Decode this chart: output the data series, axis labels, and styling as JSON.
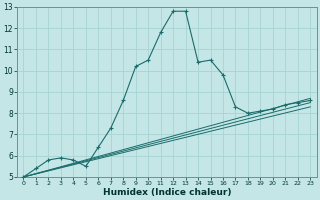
{
  "xlabel": "Humidex (Indice chaleur)",
  "ylabel": "",
  "background_color": "#c5e6e6",
  "grid_color": "#a8d4d4",
  "line_color": "#1a6b6b",
  "line_color2": "#2a8080",
  "xlim": [
    -0.5,
    23.5
  ],
  "ylim": [
    5,
    13
  ],
  "xticks": [
    0,
    1,
    2,
    3,
    4,
    5,
    6,
    7,
    8,
    9,
    10,
    11,
    12,
    13,
    14,
    15,
    16,
    17,
    18,
    19,
    20,
    21,
    22,
    23
  ],
  "yticks": [
    5,
    6,
    7,
    8,
    9,
    10,
    11,
    12,
    13
  ],
  "series_main": {
    "x": [
      0,
      1,
      2,
      3,
      4,
      5,
      6,
      7,
      8,
      9,
      10,
      11,
      12,
      13,
      14,
      15,
      16,
      17,
      18,
      19,
      20,
      21,
      22,
      23
    ],
    "y": [
      5.0,
      5.4,
      5.8,
      5.9,
      5.8,
      5.5,
      6.4,
      7.3,
      8.6,
      10.2,
      10.5,
      11.8,
      12.8,
      12.8,
      10.4,
      10.5,
      9.8,
      8.3,
      8.0,
      8.1,
      8.2,
      8.4,
      8.5,
      8.6
    ]
  },
  "series_linear": [
    {
      "x": [
        0,
        23
      ],
      "y": [
        5.0,
        8.5
      ]
    },
    {
      "x": [
        0,
        23
      ],
      "y": [
        5.0,
        8.3
      ]
    },
    {
      "x": [
        0,
        23
      ],
      "y": [
        5.0,
        8.7
      ]
    }
  ]
}
